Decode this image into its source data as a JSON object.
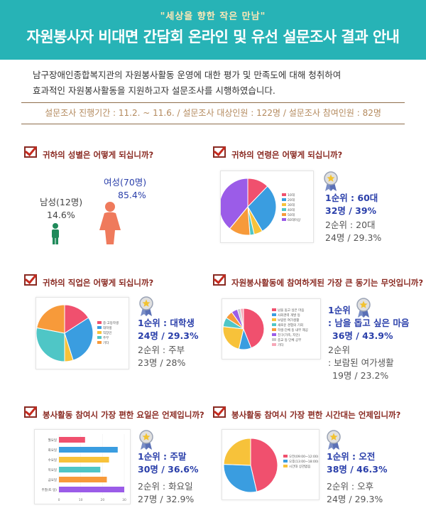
{
  "header": {
    "subtitle": "\"세상을 향한 작은 만남\"",
    "title": "자원봉사자 비대면 간담회 온라인 및 유선 설문조사 결과 안내"
  },
  "intro": {
    "line1": "남구장애인종합복지관의 자원봉사활동 운영에 대한 평가 및 만족도에 대해 청취하여",
    "line2": "효과적인 자원봉사활동을 지원하고자 설문조사를 시행하였습니다."
  },
  "survey_info": "설문조사 진행기간 : 11.2. ~ 11.6. / 설문조사 대상인원 : 122명 / 설문조사 참여인원 : 82명",
  "questions": {
    "gender": {
      "title": "귀하의 성별은 어떻게 되십니까?",
      "female_label": "여성(70명)",
      "female_pct": "85.4%",
      "male_label": "남성(12명)",
      "male_pct": "14.6%"
    },
    "age": {
      "title": "귀하의 연령은 어떻게 되십니까?",
      "rank1_line1": "1순위 : 60대",
      "rank1_line2": "32명 / 39%",
      "rank2_line1": "2순위 : 20대",
      "rank2_line2": "24명 / 29.3%"
    },
    "job": {
      "title": "귀하의 직업은 어떻게 되십니까?",
      "rank1_line1": "1순위 : 대학생",
      "rank1_line2": "24명 / 29.3%",
      "rank2_line1": "2순위 : 주부",
      "rank2_line2": "23명 / 28%"
    },
    "motive": {
      "title": "자원봉사활동에 참여하게된 가장 큰 동기는 무엇입니까?",
      "rank1_line1": "1순위",
      "rank1_line2": ": 남을 돕고 싶은 마음",
      "rank1_line3": "36명 / 43.9%",
      "rank2_line1": "2순위",
      "rank2_line2": ": 보람된 여가생활",
      "rank2_line3": "19명 / 23.2%"
    },
    "day": {
      "title": "봉사활동 참여시 가장 편한 요일은 언제입니까?",
      "rank1_line1": "1순위 : 주말",
      "rank1_line2": "30명 / 36.6%",
      "rank2_line1": "2순위 : 화요일",
      "rank2_line2": "27명 / 32.9%"
    },
    "time": {
      "title": "봉사활동 참여시 가장 편한 시간대는 언제입니까?",
      "rank1_line1": "1순위 : 오전",
      "rank1_line2": "38명 / 46.3%",
      "rank2_line1": "2순위 : 오후",
      "rank2_line2": "24명 / 29.3%"
    }
  },
  "colors": {
    "header": "#27b3b6",
    "female": "#ef7a5c",
    "male": "#1f8a5a",
    "question": "#8a2a22",
    "rank1": "#2a3faa"
  },
  "chart_data": [
    {
      "type": "pie",
      "id": "age",
      "categories": [
        "10대",
        "20대",
        "30대",
        "40대",
        "50대",
        "60대이상"
      ],
      "values": [
        10,
        24,
        4,
        2,
        10,
        32
      ],
      "colors": [
        "#f0506e",
        "#3a9de0",
        "#f7c23a",
        "#4fc6c6",
        "#f79a3a",
        "#9b5ce8"
      ],
      "legend": "right"
    },
    {
      "type": "pie",
      "id": "job",
      "categories": [
        "중·고등학생",
        "대학생",
        "직장인",
        "주부",
        "기타"
      ],
      "values": [
        13,
        24,
        4,
        23,
        18
      ],
      "colors": [
        "#f0506e",
        "#3a9de0",
        "#f7c23a",
        "#4fc6c6",
        "#f79a3a"
      ],
      "legend": "right"
    },
    {
      "type": "pie",
      "id": "motive",
      "categories": [
        "남을 돕고 싶은 마음",
        "사회경력 개발 등",
        "보람된 여가생활",
        "새로운 경험의 기회",
        "학생·단체 등 내부 제공",
        "친구(가족, 지인)",
        "종교 등 단체 공부",
        "기타"
      ],
      "values": [
        36,
        8,
        19,
        6,
        5,
        4,
        2,
        2
      ],
      "colors": [
        "#f0506e",
        "#3a9de0",
        "#f7c23a",
        "#4fc6c6",
        "#f79a3a",
        "#9b5ce8",
        "#c9c9c9",
        "#f7a8b8"
      ],
      "legend": "right"
    },
    {
      "type": "bar",
      "id": "day",
      "orientation": "horizontal",
      "categories": [
        "월요일",
        "화요일",
        "수요일",
        "목요일",
        "금요일",
        "주말(토·일)"
      ],
      "values": [
        12,
        27,
        23,
        19,
        22,
        30
      ],
      "colors": [
        "#f0506e",
        "#3a9de0",
        "#f7c23a",
        "#4fc6c6",
        "#f79a3a",
        "#9b5ce8"
      ],
      "xlim": [
        0,
        30
      ],
      "ticks": [
        0,
        10,
        20,
        30
      ]
    },
    {
      "type": "pie",
      "id": "time",
      "categories": [
        "오전(09:00~12:00)",
        "오후(13:00~18:00)",
        "시간대 상관없음"
      ],
      "values": [
        38,
        24,
        20
      ],
      "colors": [
        "#f0506e",
        "#3a9de0",
        "#f7c23a"
      ],
      "legend": "right"
    }
  ]
}
